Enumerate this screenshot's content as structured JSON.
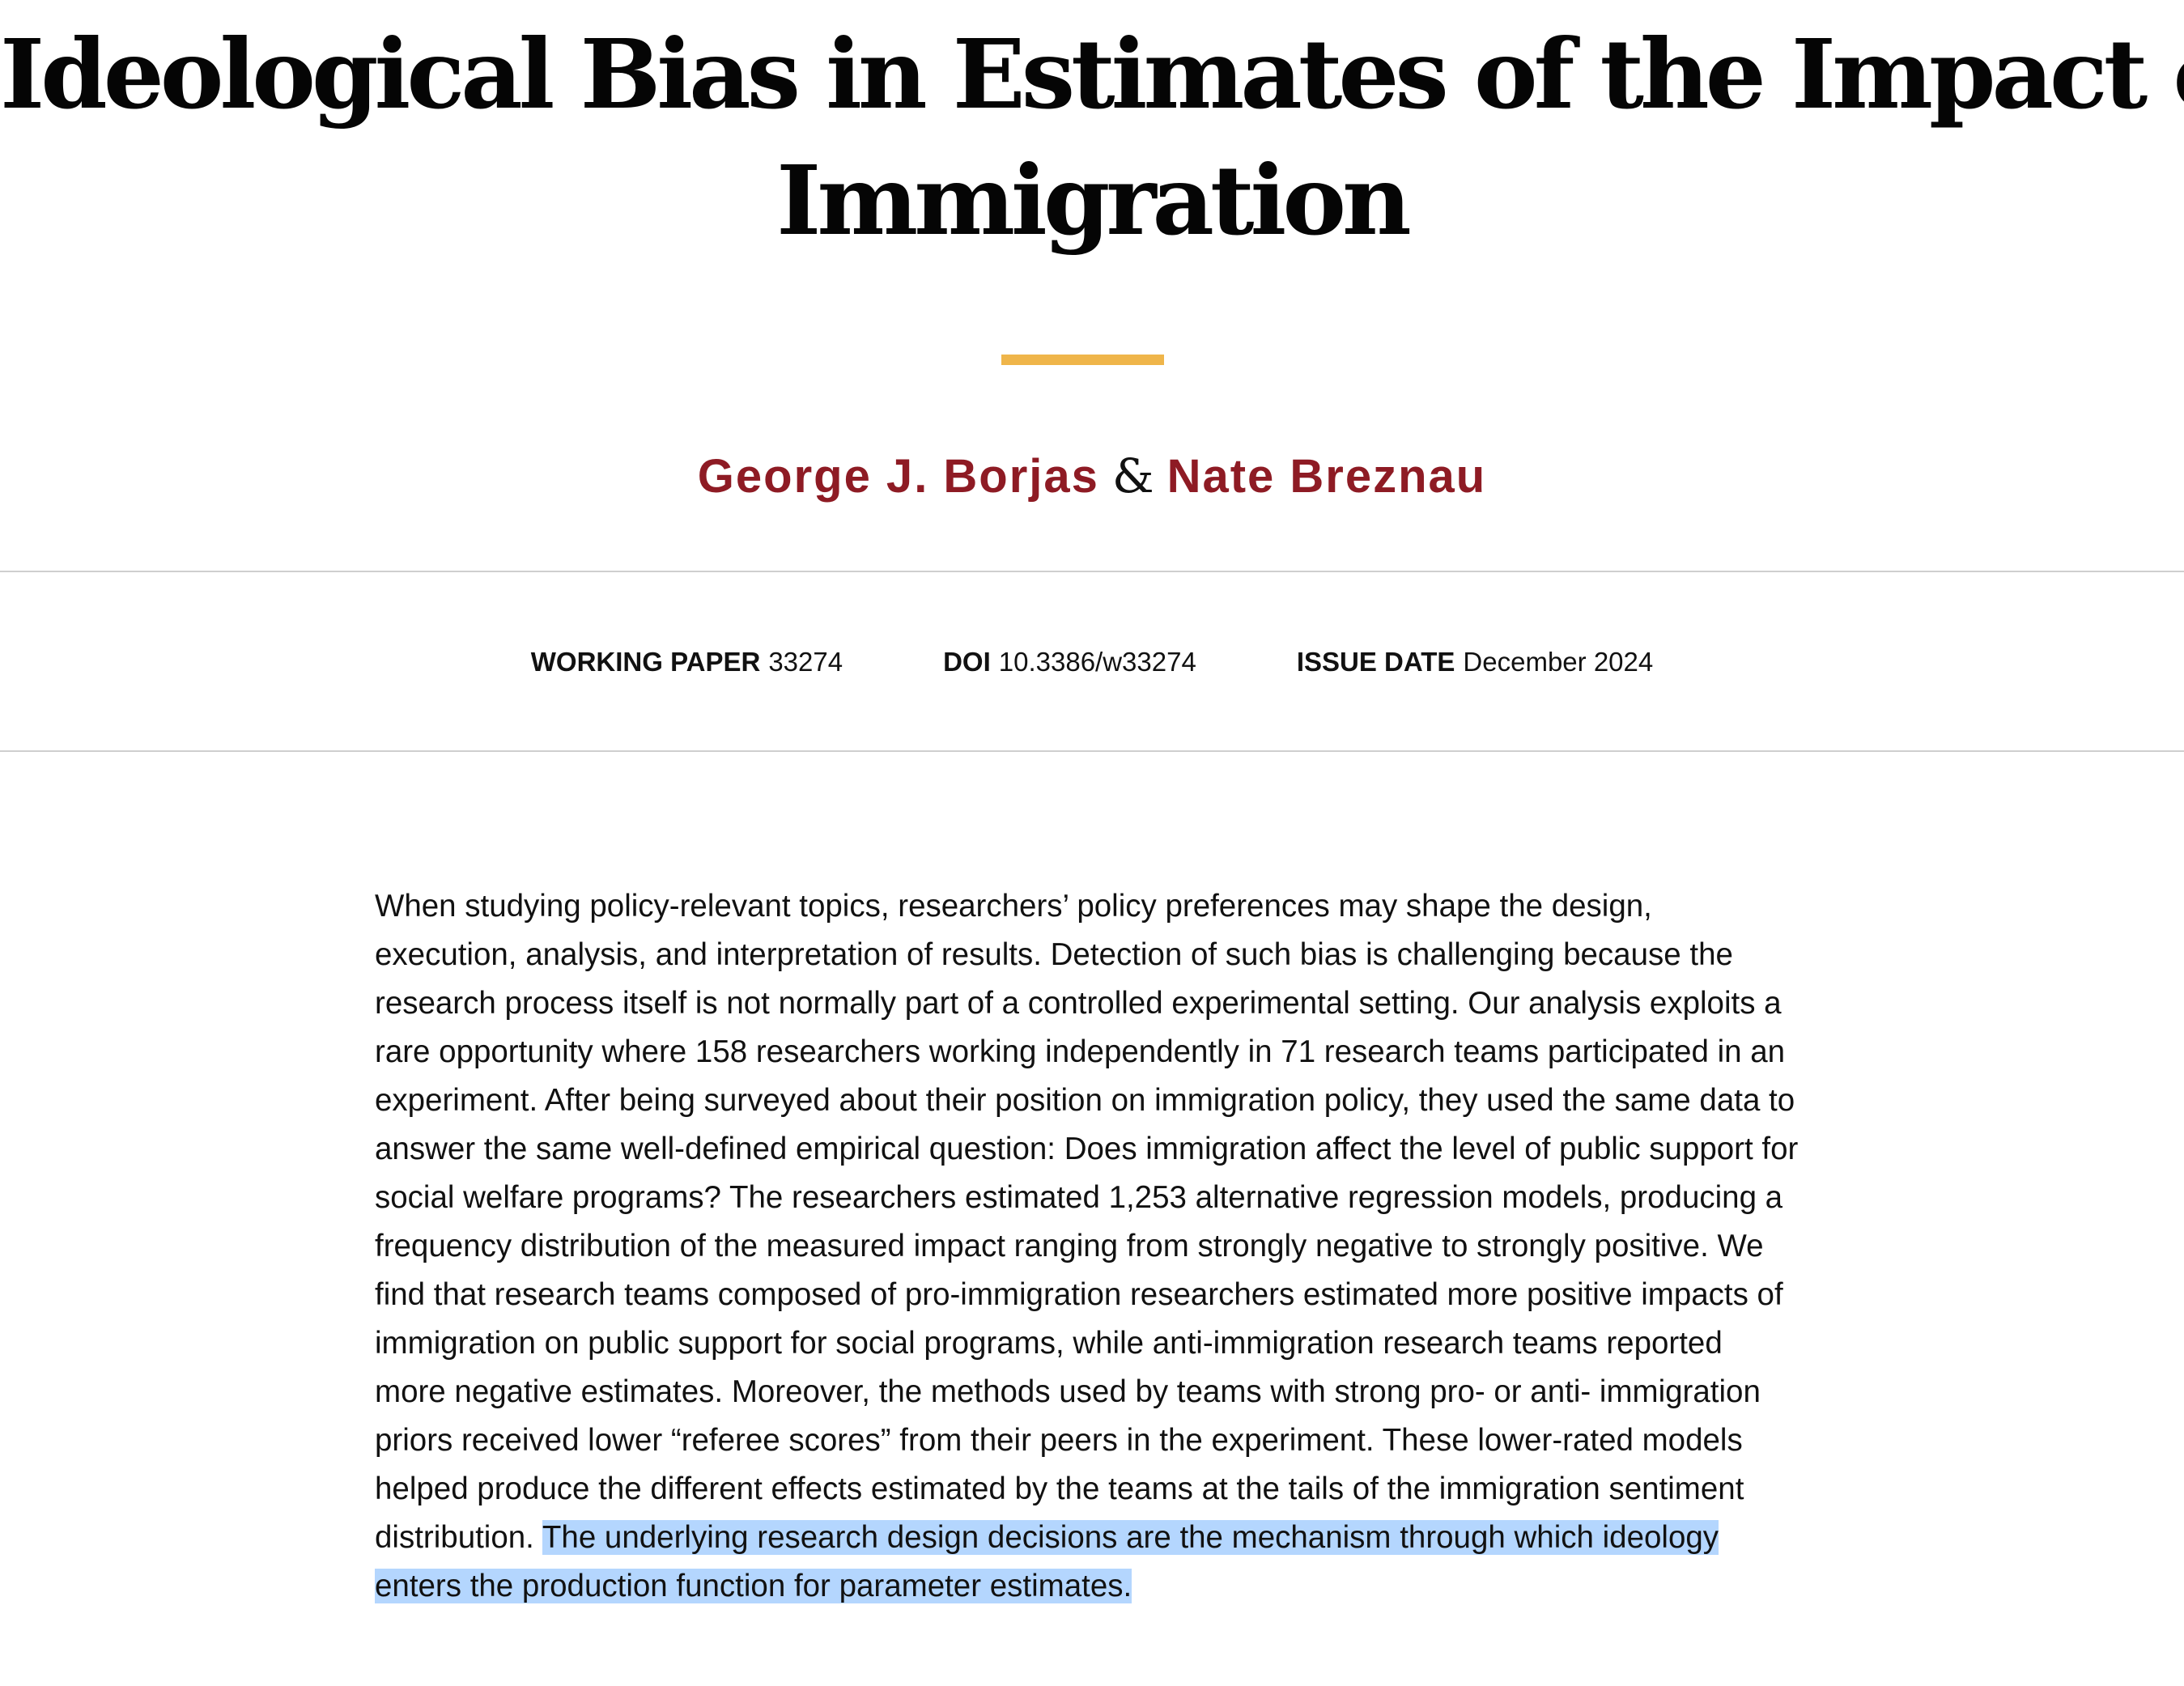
{
  "paper": {
    "title_line1": "Ideological Bias in Estimates of the Impact of",
    "title_line2": "Immigration",
    "authors": [
      {
        "name": "George J. Borjas"
      },
      {
        "name": "Nate Breznau"
      }
    ],
    "author_separator": "&"
  },
  "meta": {
    "working_paper": {
      "label": "WORKING PAPER",
      "value": "33274"
    },
    "doi": {
      "label": "DOI",
      "value": "10.3386/w33274"
    },
    "issue_date": {
      "label": "ISSUE DATE",
      "value": "December 2024"
    }
  },
  "abstract": {
    "text": "When studying policy-relevant topics, researchers’ policy preferences may shape the design, execution, analysis, and interpretation of results. Detection of such bias is challenging because the research process itself is not normally part of a controlled experimental setting. Our analysis exploits a rare opportunity where 158 researchers working independently in 71 research teams participated in an experiment. After being surveyed about their position on immigration policy, they used the same data to answer the same well-defined empirical question: Does immigration affect the level of public support for social welfare programs? The researchers estimated 1,253 alternative regression models, producing a frequency distribution of the measured impact ranging from strongly negative to strongly positive. We find that research teams composed of pro-immigration researchers estimated more positive impacts of immigration on public support for social programs, while anti-immigration research teams reported more negative estimates. Moreover, the methods used by teams with strong pro- or anti- immigration priors received lower “referee scores” from their peers in the experiment. These lower-rated models helped produce the different effects estimated by the teams at the tails of the immigration sentiment distribution. ",
    "selected_text": "The underlying research design decisions are the mechanism through which ideology enters the production function for parameter estimates."
  },
  "colors": {
    "author_link": "#8e1b24",
    "accent_bar": "#efb54a",
    "selection_highlight": "#b4d6fe",
    "divider": "#cfcfcf"
  }
}
